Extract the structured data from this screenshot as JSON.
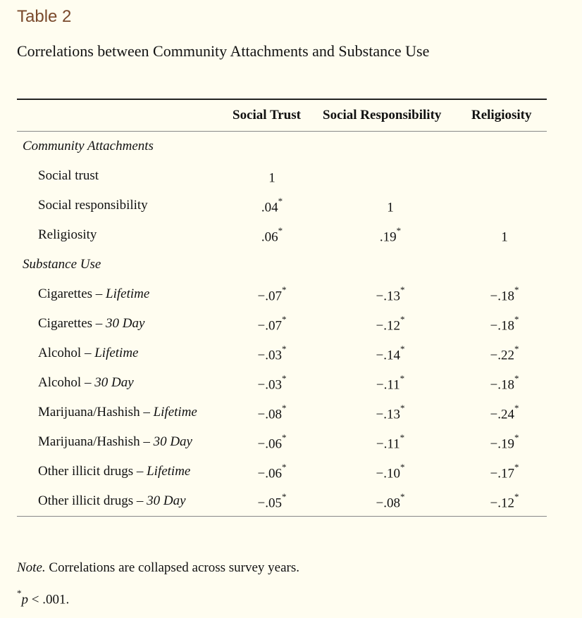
{
  "table_label": "Table 2",
  "caption": "Correlations between Community Attachments and Substance Use",
  "columns": [
    "Social Trust",
    "Social Responsibility",
    "Religiosity"
  ],
  "sections": [
    {
      "title": "Community Attachments",
      "rows": [
        {
          "label": "Social trust",
          "label_italic": "",
          "values": [
            "1",
            "",
            ""
          ],
          "stars": [
            "",
            "",
            ""
          ]
        },
        {
          "label": "Social responsibility",
          "label_italic": "",
          "values": [
            ".04",
            "1",
            ""
          ],
          "stars": [
            "*",
            "",
            ""
          ]
        },
        {
          "label": "Religiosity",
          "label_italic": "",
          "values": [
            ".06",
            ".19",
            "1"
          ],
          "stars": [
            "*",
            "*",
            ""
          ]
        }
      ]
    },
    {
      "title": "Substance Use",
      "rows": [
        {
          "label": "Cigarettes – ",
          "label_italic": "Lifetime",
          "values": [
            "−.07",
            "−.13",
            "−.18"
          ],
          "stars": [
            "*",
            "*",
            "*"
          ]
        },
        {
          "label": "Cigarettes – ",
          "label_italic": "30 Day",
          "values": [
            "−.07",
            "−.12",
            "−.18"
          ],
          "stars": [
            "*",
            "*",
            "*"
          ]
        },
        {
          "label": "Alcohol – ",
          "label_italic": "Lifetime",
          "values": [
            "−.03",
            "−.14",
            "−.22"
          ],
          "stars": [
            "*",
            "*",
            "*"
          ]
        },
        {
          "label": "Alcohol – ",
          "label_italic": "30 Day",
          "values": [
            "−.03",
            "−.11",
            "−.18"
          ],
          "stars": [
            "*",
            "*",
            "*"
          ]
        },
        {
          "label": "Marijuana/Hashish – ",
          "label_italic": "Lifetime",
          "values": [
            "−.08",
            "−.13",
            "−.24"
          ],
          "stars": [
            "*",
            "*",
            "*"
          ]
        },
        {
          "label": "Marijuana/Hashish – ",
          "label_italic": "30 Day",
          "values": [
            "−.06",
            "−.11",
            "−.19"
          ],
          "stars": [
            "*",
            "*",
            "*"
          ]
        },
        {
          "label": "Other illicit drugs – ",
          "label_italic": "Lifetime",
          "values": [
            "−.06",
            "−.10",
            "−.17"
          ],
          "stars": [
            "*",
            "*",
            "*"
          ]
        },
        {
          "label": "Other illicit drugs – ",
          "label_italic": "30 Day",
          "values": [
            "−.05",
            "−.08",
            "−.12"
          ],
          "stars": [
            "*",
            "*",
            "*"
          ]
        }
      ]
    }
  ],
  "note": {
    "prefix": "Note.",
    "text": " Correlations are collapsed across survey years.",
    "star": "*",
    "p_symbol": "p",
    "p_text": " < .001."
  }
}
